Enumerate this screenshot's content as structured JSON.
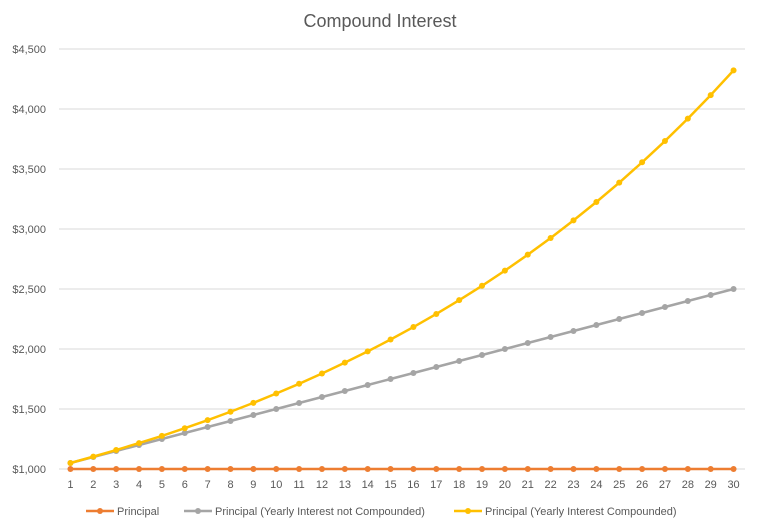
{
  "chart_data": {
    "type": "line",
    "title": "Compound Interest",
    "xlabel": "",
    "ylabel": "",
    "x": [
      1,
      2,
      3,
      4,
      5,
      6,
      7,
      8,
      9,
      10,
      11,
      12,
      13,
      14,
      15,
      16,
      17,
      18,
      19,
      20,
      21,
      22,
      23,
      24,
      25,
      26,
      27,
      28,
      29,
      30
    ],
    "ylim": [
      1000,
      4500
    ],
    "yticks": [
      1000,
      1500,
      2000,
      2500,
      3000,
      3500,
      4000,
      4500
    ],
    "ytick_labels": [
      "$1,000",
      "$1,500",
      "$2,000",
      "$2,500",
      "$3,000",
      "$3,500",
      "$4,000",
      "$4,500"
    ],
    "grid": true,
    "legend_position": "bottom",
    "series": [
      {
        "name": "Principal",
        "color": "#ED7D31",
        "values": [
          1000,
          1000,
          1000,
          1000,
          1000,
          1000,
          1000,
          1000,
          1000,
          1000,
          1000,
          1000,
          1000,
          1000,
          1000,
          1000,
          1000,
          1000,
          1000,
          1000,
          1000,
          1000,
          1000,
          1000,
          1000,
          1000,
          1000,
          1000,
          1000,
          1000
        ]
      },
      {
        "name": "Principal (Yearly Interest not Compounded)",
        "color": "#A5A5A5",
        "values": [
          1050,
          1100,
          1150,
          1200,
          1250,
          1300,
          1350,
          1400,
          1450,
          1500,
          1550,
          1600,
          1650,
          1700,
          1750,
          1800,
          1850,
          1900,
          1950,
          2000,
          2050,
          2100,
          2150,
          2200,
          2250,
          2300,
          2350,
          2400,
          2450,
          2500
        ]
      },
      {
        "name": "Principal (Yearly Interest Compounded)",
        "color": "#FFC000",
        "values": [
          1050,
          1103,
          1158,
          1216,
          1276,
          1340,
          1407,
          1477,
          1551,
          1629,
          1710,
          1796,
          1886,
          1980,
          2079,
          2183,
          2292,
          2407,
          2527,
          2653,
          2786,
          2925,
          3072,
          3225,
          3386,
          3556,
          3733,
          3920,
          4116,
          4322
        ]
      }
    ]
  }
}
